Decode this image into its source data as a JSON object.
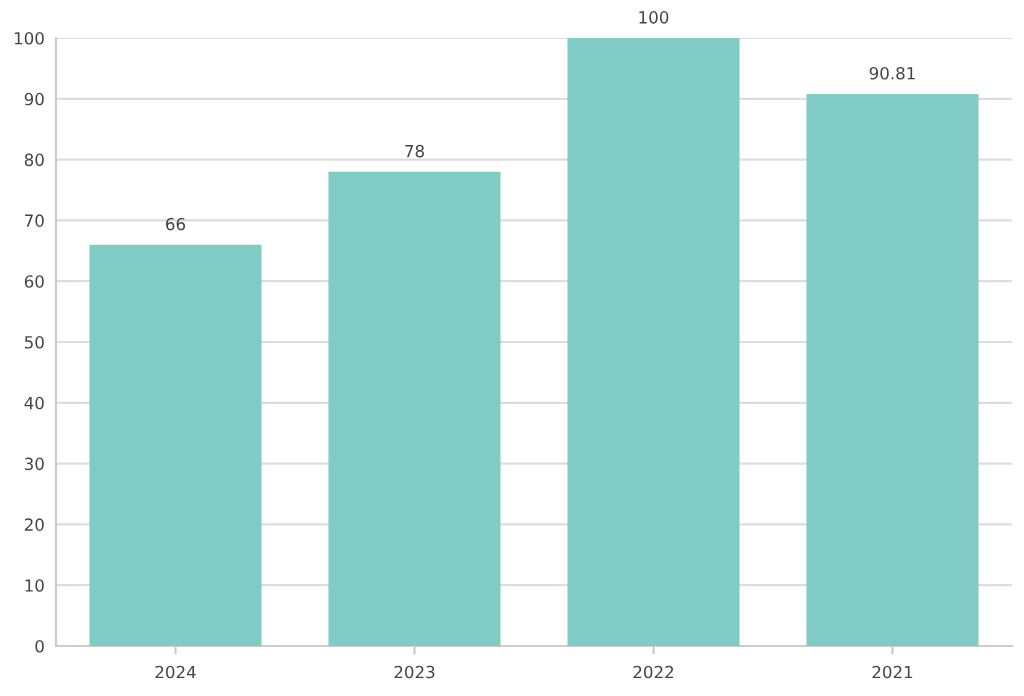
{
  "chart_data": {
    "type": "bar",
    "categories": [
      "2024",
      "2023",
      "2022",
      "2021"
    ],
    "values": [
      66,
      78,
      100,
      90.81
    ],
    "color": "#80cbc4",
    "ylim": [
      0,
      100
    ],
    "yticks": [
      0,
      10,
      20,
      30,
      40,
      50,
      60,
      70,
      80,
      90,
      100
    ],
    "grid": "y",
    "data_labels": true
  }
}
